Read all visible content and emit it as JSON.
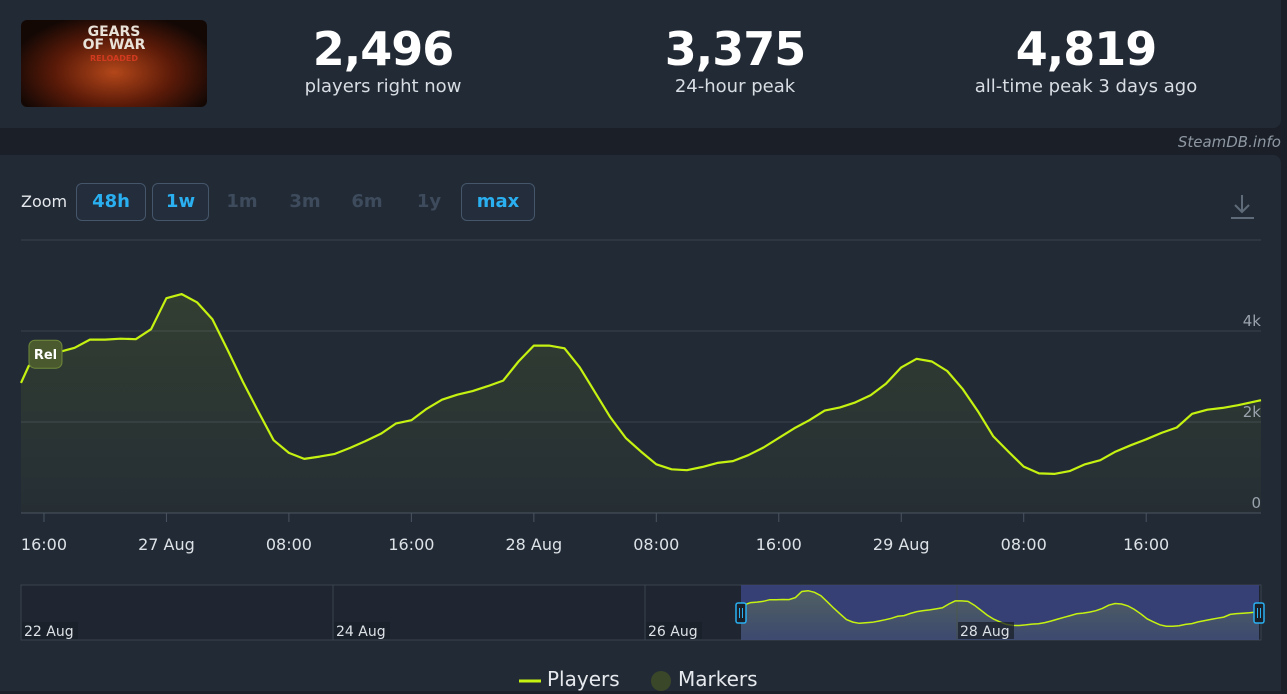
{
  "header": {
    "game_logo": {
      "line1": "GEARS",
      "line2": "OF WAR",
      "line3": "RELOADED"
    },
    "stats": [
      {
        "value": "2,496",
        "label": "players right now"
      },
      {
        "value": "3,375",
        "label": "24-hour peak"
      },
      {
        "value": "4,819",
        "label": "all-time peak 3 days ago"
      }
    ],
    "credit": "SteamDB.info"
  },
  "toolbar": {
    "zoom_label": "Zoom",
    "zoom_buttons": [
      {
        "label": "48h",
        "active": true
      },
      {
        "label": "1w",
        "active": true
      },
      {
        "label": "1m",
        "active": false
      },
      {
        "label": "3m",
        "active": false
      },
      {
        "label": "6m",
        "active": false
      },
      {
        "label": "1y",
        "active": false
      },
      {
        "label": "max",
        "active": true
      }
    ],
    "download_icon": "download-icon"
  },
  "colors": {
    "series": "#c6f211",
    "active_button": "#2ab0f1",
    "navigator_selection": "#3b4580"
  },
  "chart_data": {
    "type": "line",
    "ylim": [
      0,
      6000
    ],
    "yticks": [
      {
        "value": 0,
        "label": "0"
      },
      {
        "value": 2000,
        "label": "2k"
      },
      {
        "value": 4000,
        "label": "4k"
      }
    ],
    "xlim": [
      -1.5,
      79.5
    ],
    "xticks": [
      {
        "value": 0,
        "label": "16:00"
      },
      {
        "value": 8,
        "label": "27 Aug"
      },
      {
        "value": 16,
        "label": "08:00"
      },
      {
        "value": 24,
        "label": "16:00"
      },
      {
        "value": 32,
        "label": "28 Aug"
      },
      {
        "value": 40,
        "label": "08:00"
      },
      {
        "value": 48,
        "label": "16:00"
      },
      {
        "value": 56,
        "label": "29 Aug"
      },
      {
        "value": 64,
        "label": "08:00"
      },
      {
        "value": 72,
        "label": "16:00"
      }
    ],
    "marker": {
      "label": "Rel",
      "x": 0,
      "y": 3490
    },
    "series": [
      {
        "name": "Players",
        "x": [
          -1.5,
          -1,
          0,
          1,
          2,
          3,
          4,
          5,
          6,
          7,
          8,
          9,
          10,
          11,
          12,
          13,
          14,
          15,
          16,
          17,
          18,
          19,
          20,
          21,
          22,
          23,
          24,
          25,
          26,
          27,
          28,
          29,
          30,
          31,
          32,
          33,
          34,
          35,
          36,
          37,
          38,
          39,
          40,
          41,
          42,
          43,
          44,
          45,
          46,
          47,
          48,
          49,
          50,
          51,
          52,
          53,
          54,
          55,
          56,
          57,
          58,
          59,
          60,
          61,
          62,
          63,
          64,
          65,
          66,
          67,
          68,
          69,
          70,
          71,
          72,
          73,
          74,
          75,
          76,
          77,
          78,
          79.5
        ],
        "y": [
          2860,
          3230,
          3490,
          3540,
          3630,
          3810,
          3810,
          3830,
          3820,
          4040,
          4720,
          4810,
          4630,
          4260,
          3580,
          2880,
          2230,
          1600,
          1320,
          1190,
          1240,
          1300,
          1430,
          1580,
          1740,
          1970,
          2040,
          2290,
          2490,
          2600,
          2680,
          2790,
          2910,
          3330,
          3680,
          3680,
          3620,
          3200,
          2650,
          2100,
          1650,
          1350,
          1070,
          960,
          940,
          1010,
          1100,
          1140,
          1270,
          1440,
          1650,
          1860,
          2040,
          2250,
          2320,
          2430,
          2590,
          2840,
          3200,
          3390,
          3330,
          3120,
          2730,
          2240,
          1690,
          1350,
          1020,
          870,
          860,
          920,
          1070,
          1160,
          1350,
          1490,
          1620,
          1760,
          1880,
          2180,
          2270,
          2310,
          2370,
          2480
        ]
      }
    ]
  },
  "navigator": {
    "labels": [
      "22 Aug",
      "24 Aug",
      "26 Aug",
      "28 Aug"
    ]
  },
  "legend": [
    {
      "label": "Players"
    },
    {
      "label": "Markers"
    }
  ]
}
